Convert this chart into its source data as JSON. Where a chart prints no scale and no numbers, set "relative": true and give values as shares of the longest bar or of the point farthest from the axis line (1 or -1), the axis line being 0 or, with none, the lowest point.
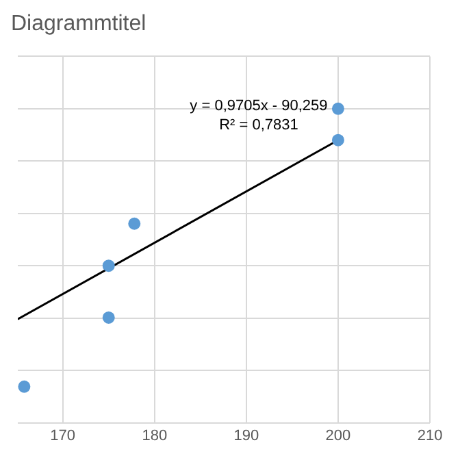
{
  "chart_data": {
    "type": "scatter",
    "title": "Diagrammtitel",
    "relative": true,
    "xlim": [
      165.1,
      210
    ],
    "xticks": [
      170,
      180,
      190,
      200,
      210
    ],
    "grid": true,
    "legend": false,
    "marker": "circle",
    "annotations": [
      "y = 0,9705x - 90,259",
      "R² = 0,7831"
    ],
    "series": [
      {
        "type": "scatter",
        "color": "#5b9bd5",
        "x": [
          165.8,
          175,
          175,
          177.8,
          200,
          200
        ],
        "values": [
          0.115,
          0.335,
          0.5,
          0.634,
          1,
          0.9
        ]
      },
      {
        "type": "line",
        "color": "#000000",
        "marker": "none",
        "x": [
          165.1,
          200
        ],
        "values": [
          0.33,
          0.9
        ]
      }
    ]
  }
}
